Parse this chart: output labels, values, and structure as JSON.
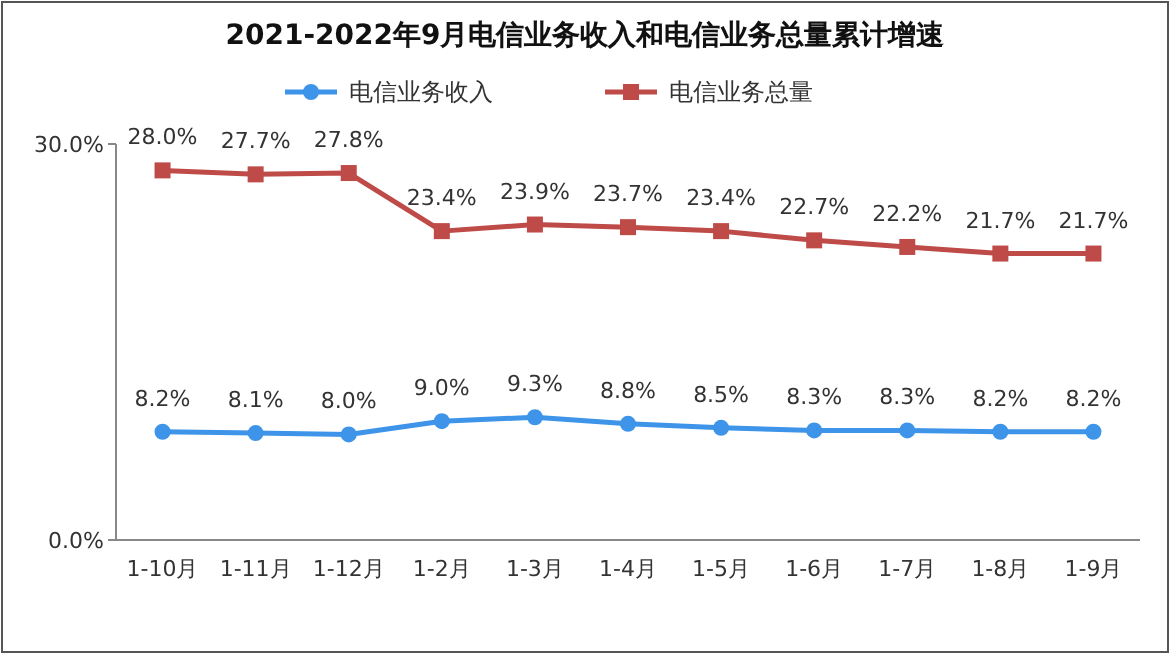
{
  "chart_data": {
    "type": "line",
    "title": "2021-2022年9月电信业务收入和电信业务总量累计增速",
    "categories": [
      "1-10月",
      "1-11月",
      "1-12月",
      "1-2月",
      "1-3月",
      "1-4月",
      "1-5月",
      "1-6月",
      "1-7月",
      "1-8月",
      "1-9月"
    ],
    "series": [
      {
        "name": "电信业务收入",
        "color": "#3d94e8",
        "marker": "circle",
        "values": [
          8.2,
          8.1,
          8.0,
          9.0,
          9.3,
          8.8,
          8.5,
          8.3,
          8.3,
          8.2,
          8.2
        ],
        "value_labels": [
          "8.2%",
          "8.1%",
          "8.0%",
          "9.0%",
          "9.3%",
          "8.8%",
          "8.5%",
          "8.3%",
          "8.3%",
          "8.2%",
          "8.2%"
        ]
      },
      {
        "name": "电信业务总量",
        "color": "#be4b48",
        "marker": "square",
        "values": [
          28.0,
          27.7,
          27.8,
          23.4,
          23.9,
          23.7,
          23.4,
          22.7,
          22.2,
          21.7,
          21.7
        ],
        "value_labels": [
          "28.0%",
          "27.7%",
          "27.8%",
          "23.4%",
          "23.9%",
          "23.7%",
          "23.4%",
          "22.7%",
          "22.2%",
          "21.7%",
          "21.7%"
        ]
      }
    ],
    "ylim": [
      0,
      30
    ],
    "yticks": [
      {
        "value": 0,
        "label": "0.0%"
      },
      {
        "value": 30,
        "label": "30.0%"
      }
    ],
    "legend": "top",
    "grid": false,
    "line_style": "solid"
  }
}
